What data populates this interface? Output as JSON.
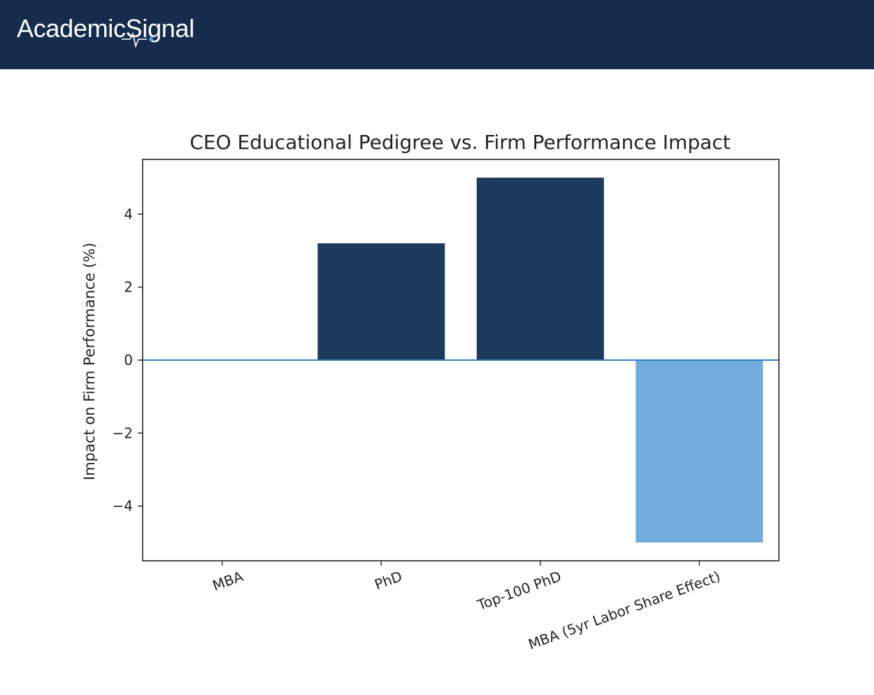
{
  "header": {
    "brand": "AcademicSignal",
    "colors": {
      "background": "#152c4c",
      "accent": "#4aa3df"
    }
  },
  "chart_data": {
    "type": "bar",
    "title": "CEO Educational Pedigree vs. Firm Performance Impact",
    "xlabel": "",
    "ylabel": "Impact on Firm Performance (%)",
    "categories": [
      "MBA",
      "PhD",
      "Top-100 PhD",
      "MBA (5yr Labor Share Effect)"
    ],
    "values": [
      0,
      3.2,
      5.0,
      -5.0
    ],
    "bar_colors": [
      "#1c3a5c",
      "#1c3a5c",
      "#1c3a5c",
      "#72acdc"
    ],
    "ylim": [
      -5.5,
      5.5
    ],
    "yticks": [
      -4,
      -2,
      0,
      2,
      4
    ],
    "ytick_labels": [
      "−4",
      "−2",
      "0",
      "2",
      "4"
    ],
    "zero_line_color": "#2f7bc9",
    "grid": false,
    "legend": "none"
  }
}
